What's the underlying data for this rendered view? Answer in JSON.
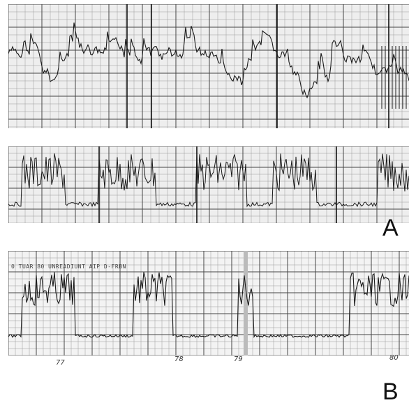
{
  "panels": {
    "a": {
      "letter": "A"
    },
    "b": {
      "letter": "B",
      "header_text": "0  TUAR 80  UNREADIUNT AIP  D-FRBN",
      "segment_labels": [
        "77",
        "78",
        "79",
        "80"
      ]
    }
  },
  "colors": {
    "background": "#ffffff",
    "paper_a": "#eeeeee",
    "paper_b": "#f3f3f3",
    "grid_major": "#444444",
    "grid_minor": "#9a9a9a",
    "trace": "#1a1a1a"
  },
  "icons": {
    "top_strip": "recording-trace-strip",
    "middle_strip": "recording-trace-strip",
    "bottom_strip": "recording-trace-strip"
  }
}
